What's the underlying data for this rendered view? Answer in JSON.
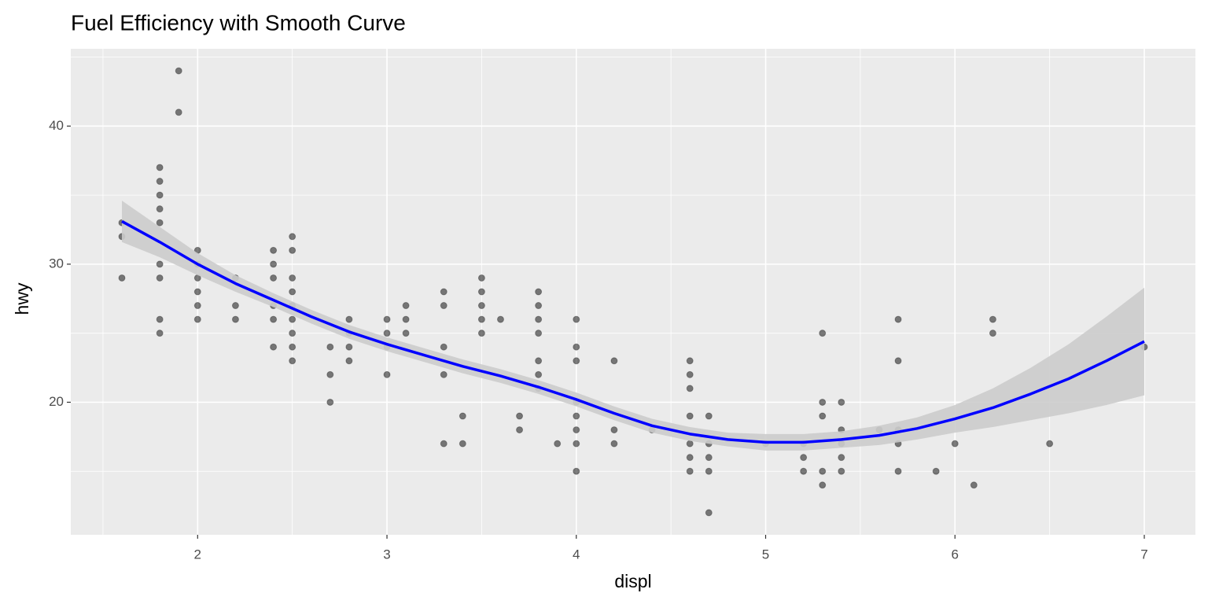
{
  "chart_data": {
    "type": "scatter",
    "title": "Fuel Efficiency with Smooth Curve",
    "x_label": "displ",
    "y_label": "hwy",
    "x": [
      1.6,
      1.6,
      1.6,
      1.8,
      1.8,
      1.8,
      1.8,
      1.8,
      1.8,
      1.8,
      1.8,
      1.8,
      1.9,
      1.9,
      2.0,
      2.0,
      2.0,
      2.0,
      2.0,
      2.0,
      2.2,
      2.2,
      2.2,
      2.4,
      2.4,
      2.4,
      2.4,
      2.4,
      2.4,
      2.5,
      2.5,
      2.5,
      2.5,
      2.5,
      2.5,
      2.5,
      2.5,
      2.5,
      2.7,
      2.7,
      2.7,
      2.8,
      2.8,
      2.8,
      2.8,
      3.0,
      3.0,
      3.0,
      3.0,
      3.1,
      3.1,
      3.1,
      3.3,
      3.3,
      3.3,
      3.3,
      3.3,
      3.4,
      3.4,
      3.5,
      3.5,
      3.5,
      3.5,
      3.5,
      3.6,
      3.7,
      3.7,
      3.8,
      3.8,
      3.8,
      3.8,
      3.8,
      3.8,
      3.8,
      3.9,
      4.0,
      4.0,
      4.0,
      4.0,
      4.0,
      4.0,
      4.0,
      4.0,
      4.2,
      4.2,
      4.2,
      4.4,
      4.6,
      4.6,
      4.6,
      4.6,
      4.6,
      4.6,
      4.6,
      4.7,
      4.7,
      4.7,
      4.7,
      4.7,
      5.0,
      5.2,
      5.2,
      5.2,
      5.3,
      5.3,
      5.3,
      5.3,
      5.3,
      5.4,
      5.4,
      5.4,
      5.4,
      5.4,
      5.6,
      5.7,
      5.7,
      5.7,
      5.7,
      5.7,
      5.9,
      6.0,
      6.1,
      6.2,
      6.2,
      6.5,
      7.0
    ],
    "y": [
      33,
      32,
      29,
      37,
      36,
      35,
      34,
      33,
      30,
      29,
      26,
      25,
      44,
      41,
      31,
      30,
      29,
      28,
      27,
      26,
      29,
      27,
      26,
      31,
      30,
      29,
      27,
      26,
      24,
      32,
      31,
      29,
      28,
      27,
      26,
      25,
      24,
      23,
      24,
      22,
      20,
      26,
      25,
      24,
      23,
      26,
      25,
      24,
      22,
      27,
      26,
      25,
      28,
      27,
      24,
      22,
      17,
      19,
      17,
      29,
      28,
      27,
      26,
      25,
      26,
      19,
      18,
      28,
      27,
      26,
      25,
      23,
      22,
      21,
      17,
      26,
      24,
      23,
      20,
      19,
      18,
      17,
      15,
      23,
      18,
      17,
      18,
      23,
      22,
      21,
      19,
      17,
      16,
      15,
      19,
      17,
      16,
      15,
      12,
      17,
      17,
      16,
      15,
      25,
      20,
      19,
      15,
      14,
      20,
      18,
      17,
      16,
      15,
      18,
      26,
      23,
      18,
      17,
      15,
      15,
      17,
      14,
      26,
      25,
      17,
      24
    ],
    "point_color": "#000000",
    "point_alpha": 0.5,
    "smooth": {
      "x": [
        1.6,
        1.8,
        2.0,
        2.2,
        2.4,
        2.6,
        2.8,
        3.0,
        3.2,
        3.4,
        3.6,
        3.8,
        4.0,
        4.2,
        4.4,
        4.6,
        4.8,
        5.0,
        5.2,
        5.4,
        5.6,
        5.8,
        6.0,
        6.2,
        6.4,
        6.6,
        6.8,
        7.0
      ],
      "y": [
        33.1,
        31.6,
        30.0,
        28.6,
        27.4,
        26.2,
        25.1,
        24.2,
        23.4,
        22.6,
        21.9,
        21.1,
        20.2,
        19.2,
        18.3,
        17.7,
        17.3,
        17.1,
        17.1,
        17.3,
        17.6,
        18.1,
        18.8,
        19.6,
        20.6,
        21.7,
        23.0,
        24.4
      ],
      "lower": [
        31.6,
        30.5,
        29.2,
        28.0,
        26.9,
        25.7,
        24.6,
        23.7,
        22.9,
        22.1,
        21.4,
        20.6,
        19.7,
        18.7,
        17.8,
        17.2,
        16.8,
        16.5,
        16.5,
        16.7,
        16.9,
        17.3,
        17.8,
        18.2,
        18.7,
        19.2,
        19.8,
        20.5
      ],
      "upper": [
        34.6,
        32.7,
        30.8,
        29.2,
        27.9,
        26.7,
        25.6,
        24.7,
        23.9,
        23.1,
        22.4,
        21.6,
        20.7,
        19.7,
        18.8,
        18.2,
        17.8,
        17.7,
        17.7,
        17.9,
        18.3,
        18.9,
        19.8,
        21.0,
        22.5,
        24.2,
        26.2,
        28.3
      ],
      "color": "#0000ff",
      "band_color": "#cccccc"
    },
    "xlim": [
      1.33,
      7.27
    ],
    "xticks": [
      2,
      3,
      4,
      5,
      6,
      7
    ],
    "xminor": [
      1.5,
      2.5,
      3.5,
      4.5,
      5.5,
      6.5
    ],
    "ylim": [
      10.4,
      45.6
    ],
    "yticks": [
      20,
      30,
      40
    ],
    "yminor": [
      15,
      25,
      35,
      45
    ],
    "grid": true
  }
}
